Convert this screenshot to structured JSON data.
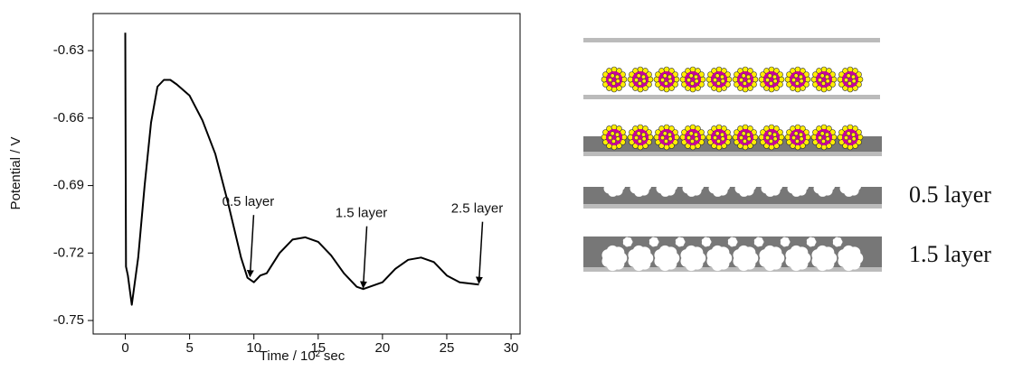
{
  "chart_data": {
    "type": "line",
    "x_label": "Time / 10² sec",
    "y_label": "Potential / V",
    "x": [
      0,
      0.05,
      0.2,
      0.5,
      1,
      1.5,
      2,
      2.5,
      3,
      3.5,
      4,
      5,
      6,
      7,
      8,
      9,
      9.5,
      10,
      10.5,
      11,
      12,
      13,
      14,
      15,
      16,
      17,
      18,
      18.5,
      19,
      20,
      21,
      22,
      23,
      24,
      25,
      26,
      27.5
    ],
    "series": [
      {
        "color": "#000000",
        "values": [
          -0.622,
          -0.726,
          -0.73,
          -0.743,
          -0.722,
          -0.69,
          -0.662,
          -0.646,
          -0.643,
          -0.643,
          -0.645,
          -0.65,
          -0.661,
          -0.676,
          -0.698,
          -0.722,
          -0.731,
          -0.733,
          -0.73,
          -0.729,
          -0.72,
          -0.714,
          -0.713,
          -0.715,
          -0.721,
          -0.729,
          -0.735,
          -0.736,
          -0.735,
          -0.733,
          -0.727,
          -0.723,
          -0.722,
          -0.724,
          -0.73,
          -0.733,
          -0.734
        ]
      }
    ],
    "xlim": [
      -2.5,
      30.7
    ],
    "ylim": [
      -0.756,
      -0.6135
    ],
    "xticks": [
      0,
      5,
      10,
      15,
      20,
      25,
      30
    ],
    "yticks": [
      -0.63,
      -0.66,
      -0.69,
      -0.72,
      -0.75
    ],
    "annotations": [
      {
        "text": "0.5 layer",
        "x": 9.7,
        "y": -0.732
      },
      {
        "text": "1.5 layer",
        "x": 18.5,
        "y": -0.737
      },
      {
        "text": "2.5 layer",
        "x": 27.5,
        "y": -0.735
      }
    ]
  },
  "diagram": {
    "labels": [
      "0.5 layer",
      "1.5 layer"
    ]
  }
}
